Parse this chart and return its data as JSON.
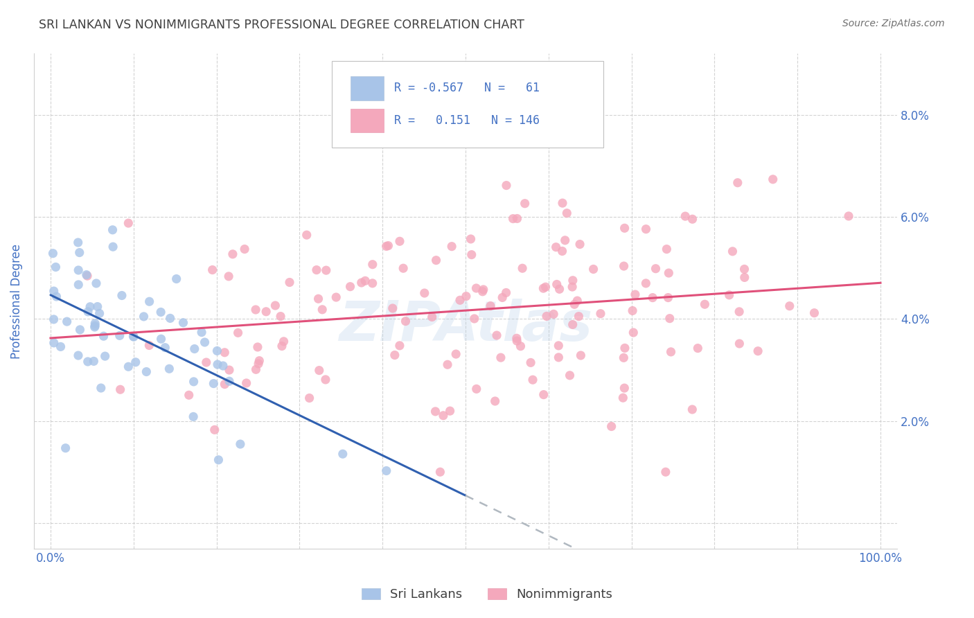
{
  "title": "SRI LANKAN VS NONIMMIGRANTS PROFESSIONAL DEGREE CORRELATION CHART",
  "source": "Source: ZipAtlas.com",
  "ylabel": "Professional Degree",
  "watermark": "ZIPAtlas",
  "sri_lankan_R": -0.567,
  "sri_lankan_N": 61,
  "nonimmigrant_R": 0.151,
  "nonimmigrant_N": 146,
  "xlim": [
    -0.02,
    1.02
  ],
  "ylim": [
    -0.005,
    0.092
  ],
  "x_ticks": [
    0.0,
    0.1,
    0.2,
    0.3,
    0.4,
    0.5,
    0.6,
    0.7,
    0.8,
    0.9,
    1.0
  ],
  "y_ticks": [
    0.0,
    0.02,
    0.04,
    0.06,
    0.08
  ],
  "tick_color": "#4472c4",
  "grid_color": "#c8c8c8",
  "sri_lankan_scatter_color": "#a8c4e8",
  "nonimmigrant_scatter_color": "#f4a8bc",
  "sri_lankan_line_color": "#3060b0",
  "nonimmigrant_line_color": "#e0507a",
  "sri_lankan_line_dashed_color": "#b0b8c0",
  "background_color": "#ffffff",
  "title_color": "#404040",
  "source_color": "#707070",
  "legend_text_color": "#4472c4",
  "sl_seed": 7,
  "ni_seed": 12
}
